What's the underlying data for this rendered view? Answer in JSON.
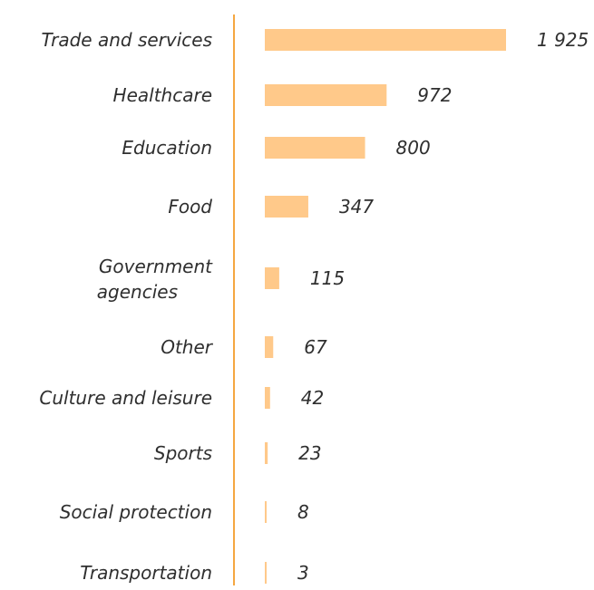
{
  "chart_data": {
    "type": "bar",
    "orientation": "horizontal",
    "categories": [
      "Trade and services",
      "Healthcare",
      "Education",
      "Food",
      "Government agencies",
      "Other",
      "Culture and leisure",
      "Sports",
      "Social protection",
      "Transportation"
    ],
    "values": [
      1925,
      972,
      800,
      347,
      115,
      67,
      42,
      23,
      8,
      3
    ],
    "value_labels": [
      "1 925",
      "972",
      "800",
      "347",
      "115",
      "67",
      "42",
      "23",
      "8",
      "3"
    ],
    "title": "",
    "xlabel": "",
    "ylabel": "",
    "xlim": [
      0,
      1925
    ],
    "grid": false,
    "colors": {
      "bar": "#ffc98a",
      "axis": "#f5a741",
      "text": "#2f2f2f"
    }
  }
}
